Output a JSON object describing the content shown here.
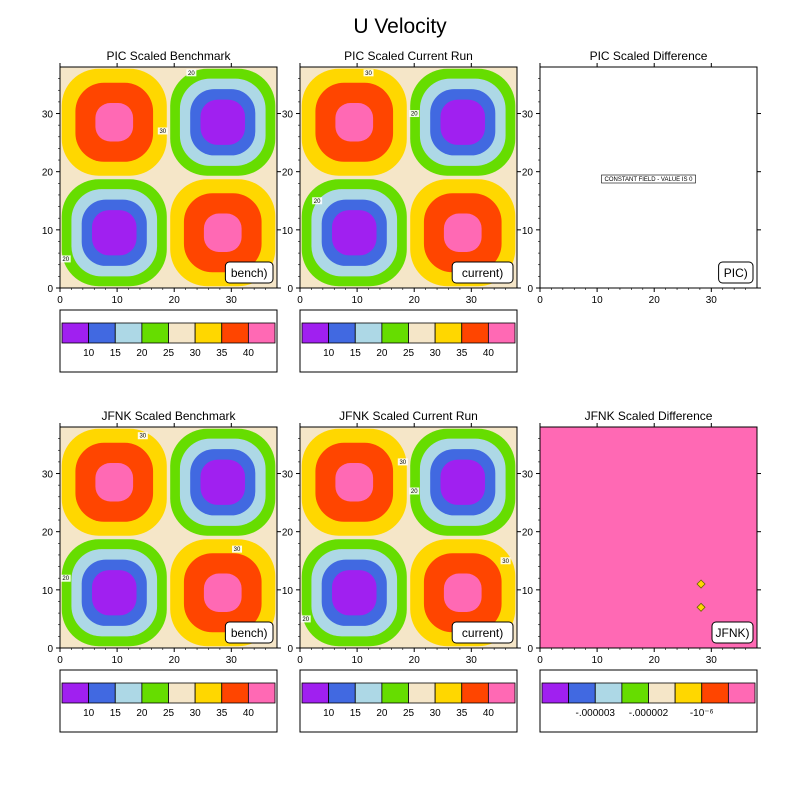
{
  "figure": {
    "title": "U Velocity"
  },
  "palette": [
    "#a020f0",
    "#4169e1",
    "#add8e6",
    "#66dd00",
    "#f5e6c8",
    "#ffd700",
    "#ff4500",
    "#ff69b4"
  ],
  "panels": [
    {
      "title": "PIC Scaled Benchmark",
      "tag": "bench)",
      "field": "quad",
      "line_labels": [
        {
          "text": "20",
          "x": 23,
          "y": 37
        },
        {
          "text": "30",
          "x": 18,
          "y": 27
        },
        {
          "text": "20",
          "x": 1,
          "y": 5
        }
      ],
      "colorbar": [
        "10",
        "15",
        "20",
        "25",
        "30",
        "35",
        "40"
      ]
    },
    {
      "title": "PIC Scaled Current Run",
      "tag": "current)",
      "field": "quad",
      "line_labels": [
        {
          "text": "30",
          "x": 12,
          "y": 37
        },
        {
          "text": "20",
          "x": 20,
          "y": 30
        },
        {
          "text": "20",
          "x": 3,
          "y": 15
        }
      ],
      "colorbar": [
        "10",
        "15",
        "20",
        "25",
        "30",
        "35",
        "40"
      ]
    },
    {
      "title": "PIC Scaled Difference",
      "tag": "PIC)",
      "field": "constant",
      "constant_text": "CONSTANT FIELD - VALUE IS 0"
    },
    {
      "title": "JFNK Scaled Benchmark",
      "tag": "bench)",
      "field": "quad",
      "line_labels": [
        {
          "text": "30",
          "x": 14.5,
          "y": 36.5
        },
        {
          "text": "30",
          "x": 31,
          "y": 17
        },
        {
          "text": "20",
          "x": 1,
          "y": 12
        }
      ],
      "colorbar": [
        "10",
        "15",
        "20",
        "25",
        "30",
        "35",
        "40"
      ]
    },
    {
      "title": "JFNK Scaled Current Run",
      "tag": "current)",
      "field": "quad",
      "line_labels": [
        {
          "text": "30",
          "x": 18,
          "y": 32
        },
        {
          "text": "20",
          "x": 20,
          "y": 27
        },
        {
          "text": "30",
          "x": 36,
          "y": 15
        },
        {
          "text": "20",
          "x": 1,
          "y": 5
        }
      ],
      "colorbar": [
        "10",
        "15",
        "20",
        "25",
        "30",
        "35",
        "40"
      ]
    },
    {
      "title": "JFNK Scaled Difference",
      "tag": "JFNK)",
      "field": "uniform",
      "fill_index": 7,
      "markers": [
        {
          "x": 28.2,
          "y": 11
        },
        {
          "x": 28.2,
          "y": 7
        }
      ],
      "colorbar": [
        "-.000003",
        "-.000002",
        "-10⁻⁶"
      ],
      "colorbar_positions": [
        2,
        4,
        6
      ]
    }
  ],
  "chart_data": [
    {
      "type": "heatmap",
      "title": "PIC Scaled Benchmark",
      "x_ticks": [
        0,
        10,
        20,
        30
      ],
      "y_ticks": [
        0,
        10,
        20,
        30
      ],
      "xlim": [
        0,
        38
      ],
      "ylim": [
        0,
        38
      ],
      "contour_levels": [
        10,
        15,
        20,
        25,
        30,
        35,
        40
      ],
      "field": "four-cell pattern: maxima (>40) near (9.5,28.5) and (28.5,9.5), minima (<10) near (9.5,9.5) and (28.5,28.5), ~25 along x=19 and y=19"
    },
    {
      "type": "heatmap",
      "title": "PIC Scaled Current Run",
      "x_ticks": [
        0,
        10,
        20,
        30
      ],
      "y_ticks": [
        0,
        10,
        20,
        30
      ],
      "xlim": [
        0,
        38
      ],
      "ylim": [
        0,
        38
      ],
      "contour_levels": [
        10,
        15,
        20,
        25,
        30,
        35,
        40
      ]
    },
    {
      "type": "heatmap",
      "title": "PIC Scaled Difference",
      "x_ticks": [
        0,
        10,
        20,
        30
      ],
      "y_ticks": [
        0,
        10,
        20,
        30
      ],
      "xlim": [
        0,
        38
      ],
      "ylim": [
        0,
        38
      ],
      "value": 0
    },
    {
      "type": "heatmap",
      "title": "JFNK Scaled Benchmark",
      "x_ticks": [
        0,
        10,
        20,
        30
      ],
      "y_ticks": [
        0,
        10,
        20,
        30
      ],
      "xlim": [
        0,
        38
      ],
      "ylim": [
        0,
        38
      ],
      "contour_levels": [
        10,
        15,
        20,
        25,
        30,
        35,
        40
      ]
    },
    {
      "type": "heatmap",
      "title": "JFNK Scaled Current Run",
      "x_ticks": [
        0,
        10,
        20,
        30
      ],
      "y_ticks": [
        0,
        10,
        20,
        30
      ],
      "xlim": [
        0,
        38
      ],
      "ylim": [
        0,
        38
      ],
      "contour_levels": [
        10,
        15,
        20,
        25,
        30,
        35,
        40
      ]
    },
    {
      "type": "heatmap",
      "title": "JFNK Scaled Difference",
      "x_ticks": [
        0,
        10,
        20,
        30
      ],
      "y_ticks": [
        0,
        10,
        20,
        30
      ],
      "xlim": [
        0,
        38
      ],
      "ylim": [
        0,
        38
      ],
      "colorbar_labels": [
        "-.000003",
        "-.000002",
        "-10⁻⁶"
      ],
      "markers_at": [
        [
          28.2,
          11
        ],
        [
          28.2,
          7
        ]
      ]
    }
  ]
}
